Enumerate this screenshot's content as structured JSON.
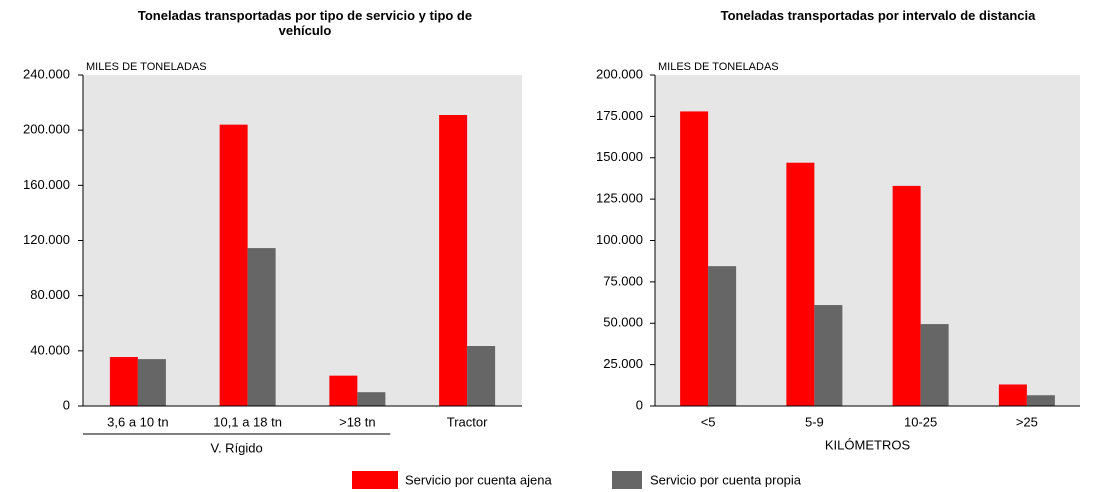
{
  "chart_data": [
    {
      "type": "bar",
      "title": "Toneladas transportadas por tipo de servicio y tipo de vehículo",
      "unit_label": "MILES DE TONELADAS",
      "categories": [
        "3,6 a 10 tn",
        "10,1 a 18 tn",
        ">18 tn",
        "Tractor"
      ],
      "groups": [
        {
          "label": "V. Rígido",
          "members": [
            0,
            1,
            2
          ]
        }
      ],
      "series": [
        {
          "name": "Servicio por cuenta ajena",
          "color": "#ff0000",
          "values": [
            35500,
            204000,
            22000,
            211000
          ]
        },
        {
          "name": "Servicio por cuenta propia",
          "color": "#666666",
          "values": [
            34000,
            114500,
            10000,
            43500
          ]
        }
      ],
      "ylim": [
        0,
        240000
      ],
      "yticks": [
        0,
        {
          "value": 40000,
          "label": "40.000"
        },
        {
          "value": 80000,
          "label": "80.000"
        },
        {
          "value": 120000,
          "label": "120.000"
        },
        {
          "value": 160000,
          "label": "160.000"
        },
        {
          "value": 200000,
          "label": "200.000"
        },
        {
          "value": 240000,
          "label": "240.000"
        }
      ]
    },
    {
      "type": "bar",
      "title": "Toneladas transportadas por intervalo de distancia",
      "unit_label": "MILES DE TONELADAS",
      "x_label": "KILÓMETROS",
      "categories": [
        "<5",
        "5-9",
        "10-25",
        ">25"
      ],
      "series": [
        {
          "name": "Servicio por cuenta ajena",
          "color": "#ff0000",
          "values": [
            178000,
            147000,
            133000,
            13000
          ]
        },
        {
          "name": "Servicio por cuenta propia",
          "color": "#666666",
          "values": [
            84500,
            61000,
            49500,
            6500
          ]
        }
      ],
      "ylim": [
        0,
        200000
      ],
      "yticks": [
        0,
        {
          "value": 25000,
          "label": "25.000"
        },
        {
          "value": 50000,
          "label": "50.000"
        },
        {
          "value": 75000,
          "label": "75.000"
        },
        {
          "value": 100000,
          "label": "100.000"
        },
        {
          "value": 125000,
          "label": "125.000"
        },
        {
          "value": 150000,
          "label": "150.000"
        },
        {
          "value": 175000,
          "label": "175.000"
        },
        {
          "value": 200000,
          "label": "200.000"
        }
      ]
    }
  ]
}
